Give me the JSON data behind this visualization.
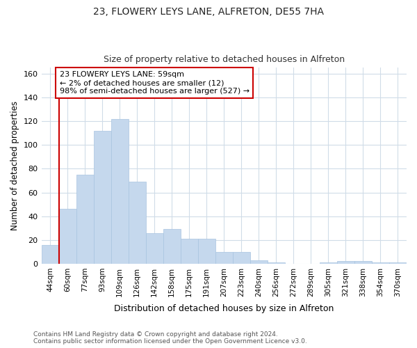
{
  "title1": "23, FLOWERY LEYS LANE, ALFRETON, DE55 7HA",
  "title2": "Size of property relative to detached houses in Alfreton",
  "xlabel": "Distribution of detached houses by size in Alfreton",
  "ylabel": "Number of detached properties",
  "bin_labels": [
    "44sqm",
    "60sqm",
    "77sqm",
    "93sqm",
    "109sqm",
    "126sqm",
    "142sqm",
    "158sqm",
    "175sqm",
    "191sqm",
    "207sqm",
    "223sqm",
    "240sqm",
    "256sqm",
    "272sqm",
    "289sqm",
    "305sqm",
    "321sqm",
    "338sqm",
    "354sqm",
    "370sqm"
  ],
  "bar_heights": [
    16,
    46,
    75,
    112,
    122,
    69,
    26,
    29,
    21,
    21,
    10,
    10,
    3,
    1,
    0,
    0,
    1,
    2,
    2,
    1,
    1
  ],
  "bar_color": "#c5d8ed",
  "bar_edgecolor": "#a8c4e0",
  "vline_color": "#cc0000",
  "annotation_text": "23 FLOWERY LEYS LANE: 59sqm\n← 2% of detached houses are smaller (12)\n98% of semi-detached houses are larger (527) →",
  "annotation_box_color": "#ffffff",
  "annotation_box_edgecolor": "#cc0000",
  "ylim": [
    0,
    165
  ],
  "yticks": [
    0,
    20,
    40,
    60,
    80,
    100,
    120,
    140,
    160
  ],
  "background_color": "#ffffff",
  "fig_background_color": "#ffffff",
  "grid_color": "#d0dce8",
  "footnote": "Contains HM Land Registry data © Crown copyright and database right 2024.\nContains public sector information licensed under the Open Government Licence v3.0."
}
